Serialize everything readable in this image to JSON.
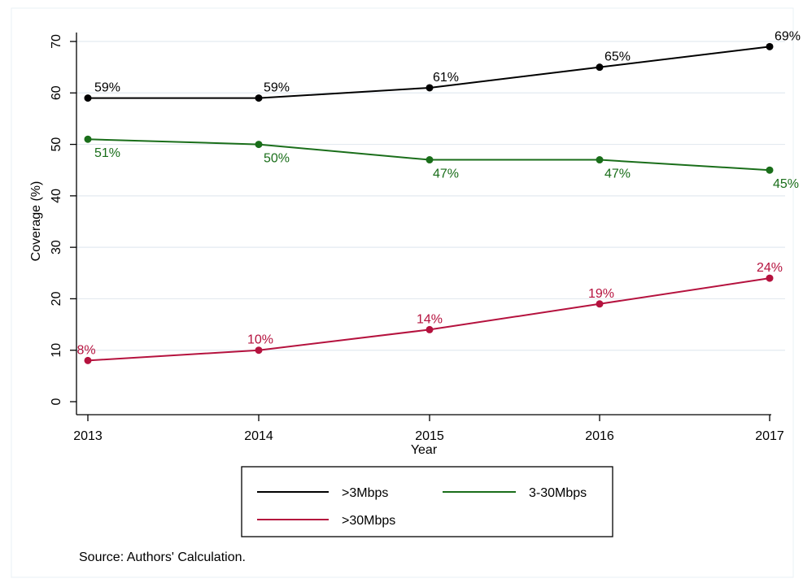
{
  "chart_data": {
    "type": "line",
    "x": [
      2013,
      2014,
      2015,
      2016,
      2017
    ],
    "xlabel": "Year",
    "ylabel": "Coverage (%)",
    "ylim": [
      0,
      70
    ],
    "yticks": [
      0,
      10,
      20,
      30,
      40,
      50,
      60,
      70
    ],
    "grid": true,
    "legend_position": "bottom",
    "series": [
      {
        "name": ">3Mbps",
        "color": "#000000",
        "values": [
          59,
          59,
          61,
          65,
          69
        ],
        "labels": [
          "59%",
          "59%",
          "61%",
          "65%",
          "69%"
        ]
      },
      {
        "name": "3-30Mbps",
        "color": "#1a6e1a",
        "values": [
          51,
          50,
          47,
          47,
          45
        ],
        "labels": [
          "51%",
          "50%",
          "47%",
          "47%",
          "45%"
        ]
      },
      {
        "name": ">30Mbps",
        "color": "#b5123e",
        "values": [
          8,
          10,
          14,
          19,
          24
        ],
        "labels": [
          "8%",
          "10%",
          "14%",
          "19%",
          "24%"
        ]
      }
    ]
  },
  "source_note": "Source: Authors' Calculation."
}
